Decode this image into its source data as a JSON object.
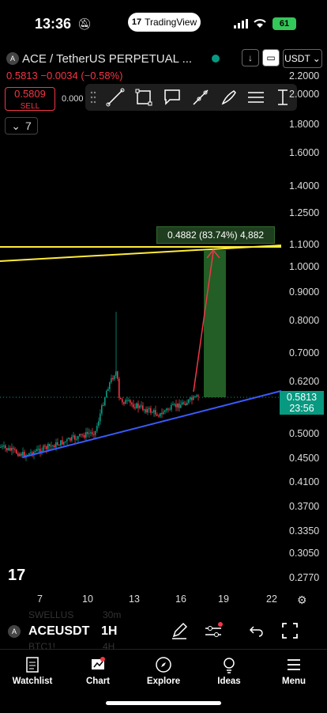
{
  "status": {
    "time": "13:36",
    "app_pill": "TradingView",
    "battery": "61"
  },
  "header": {
    "title": "ACE / TetherUS PERPETUAL ...",
    "price_change": "0.5813 −0.0034 (−0.58%)",
    "sell_price": "0.5809",
    "sell_label": "SELL",
    "buy_price_partial": "0.000",
    "currency": "USDT",
    "interval_count": "7"
  },
  "chart": {
    "price_axis": [
      "2.2000",
      "2.0000",
      "1.8000",
      "1.6000",
      "1.4000",
      "1.2500",
      "1.1000",
      "1.0000",
      "0.9000",
      "0.8000",
      "0.7000",
      "0.6200",
      "0.5000",
      "0.4500",
      "0.4100",
      "0.3700",
      "0.3350",
      "0.3050",
      "0.2770"
    ],
    "time_axis": [
      "7",
      "10",
      "13",
      "16",
      "19",
      "22"
    ],
    "last_price": "0.5813",
    "countdown": "23:56",
    "measure_label": "0.4882 (83.74%) 4,882",
    "colors": {
      "up": "#089981",
      "down": "#f23645",
      "trend_line": "#3a5bff",
      "resistance": "#ffeb3b",
      "measure": "#2e7d32"
    }
  },
  "bottom_bar": {
    "symbol": "ACEUSDT",
    "interval": "1H",
    "ghost_1": "SWELLUS",
    "ghost_2": "30m",
    "ghost_3": "BTC1!",
    "ghost_4": "4H"
  },
  "tabs": [
    {
      "label": "Watchlist",
      "icon": "watchlist-icon"
    },
    {
      "label": "Chart",
      "icon": "chart-icon"
    },
    {
      "label": "Explore",
      "icon": "compass-icon"
    },
    {
      "label": "Ideas",
      "icon": "lightbulb-icon"
    },
    {
      "label": "Menu",
      "icon": "menu-icon"
    }
  ]
}
